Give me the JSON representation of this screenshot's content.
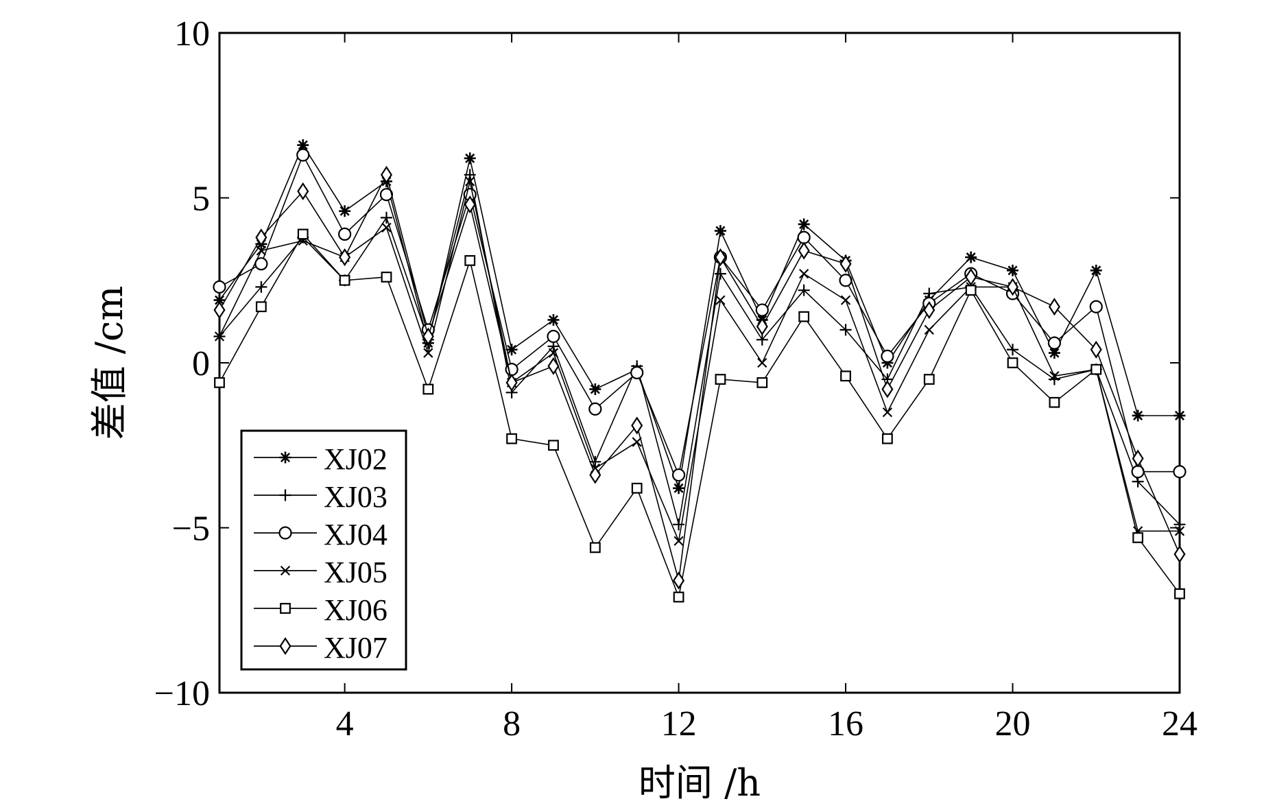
{
  "chart_data": {
    "type": "line",
    "title": "",
    "xlabel": "时间 /h",
    "ylabel": "差值 /cm",
    "xlim": [
      1,
      24
    ],
    "ylim": [
      -10,
      10
    ],
    "xticks": [
      4,
      8,
      12,
      16,
      20,
      24
    ],
    "yticks": [
      -10,
      -5,
      0,
      5,
      10
    ],
    "xtick_labels": [
      "4",
      "8",
      "12",
      "16",
      "20",
      "24"
    ],
    "ytick_labels": [
      "−10",
      "−5",
      "0",
      "5",
      "10"
    ],
    "legend_position": "bottom-left",
    "line_color": "#000000",
    "x": [
      1,
      2,
      3,
      4,
      5,
      6,
      7,
      8,
      9,
      10,
      11,
      12,
      13,
      14,
      15,
      16,
      17,
      18,
      19,
      20,
      21,
      22,
      23,
      24
    ],
    "series": [
      {
        "name": "XJ02",
        "marker": "asterisk",
        "values": [
          1.9,
          3.6,
          6.6,
          4.6,
          5.5,
          0.6,
          6.2,
          0.4,
          1.3,
          -0.8,
          -0.2,
          -3.8,
          4.0,
          1.3,
          4.2,
          3.1,
          0.0,
          1.9,
          3.2,
          2.8,
          0.3,
          2.8,
          -1.6,
          -1.6
        ]
      },
      {
        "name": "XJ03",
        "marker": "plus",
        "values": [
          0.8,
          2.3,
          3.8,
          2.5,
          4.4,
          0.7,
          5.7,
          -0.9,
          0.5,
          -3.0,
          -0.1,
          -4.9,
          2.7,
          0.7,
          2.2,
          1.0,
          -0.5,
          2.1,
          2.3,
          0.4,
          -0.5,
          -0.2,
          -3.6,
          -4.9
        ]
      },
      {
        "name": "XJ04",
        "marker": "circle",
        "values": [
          2.3,
          3.0,
          6.3,
          3.9,
          5.1,
          1.0,
          5.1,
          -0.2,
          0.8,
          -1.4,
          -0.3,
          -3.4,
          3.2,
          1.6,
          3.8,
          2.5,
          0.2,
          1.8,
          2.7,
          2.1,
          0.6,
          1.7,
          -3.3,
          -3.3
        ]
      },
      {
        "name": "XJ05",
        "marker": "x",
        "values": [
          0.8,
          3.4,
          3.7,
          3.2,
          4.1,
          0.3,
          5.5,
          -0.6,
          0.3,
          -3.2,
          -2.4,
          -5.4,
          1.9,
          0.0,
          2.7,
          1.9,
          -1.5,
          1.0,
          2.3,
          2.3,
          -0.4,
          -0.2,
          -5.1,
          -5.1
        ]
      },
      {
        "name": "XJ06",
        "marker": "square",
        "values": [
          -0.6,
          1.7,
          3.9,
          2.5,
          2.6,
          -0.8,
          3.1,
          -2.3,
          -2.5,
          -5.6,
          -3.8,
          -7.1,
          -0.5,
          -0.6,
          1.4,
          -0.4,
          -2.3,
          -0.5,
          2.2,
          0.0,
          -1.2,
          -0.2,
          -5.3,
          -7.0
        ]
      },
      {
        "name": "XJ07",
        "marker": "diamond",
        "values": [
          1.6,
          3.8,
          5.2,
          3.2,
          5.7,
          0.8,
          4.8,
          -0.6,
          -0.1,
          -3.4,
          -1.9,
          -6.6,
          3.2,
          1.1,
          3.4,
          3.0,
          -0.8,
          1.6,
          2.6,
          2.3,
          1.7,
          0.4,
          -2.9,
          -5.8
        ]
      }
    ]
  }
}
